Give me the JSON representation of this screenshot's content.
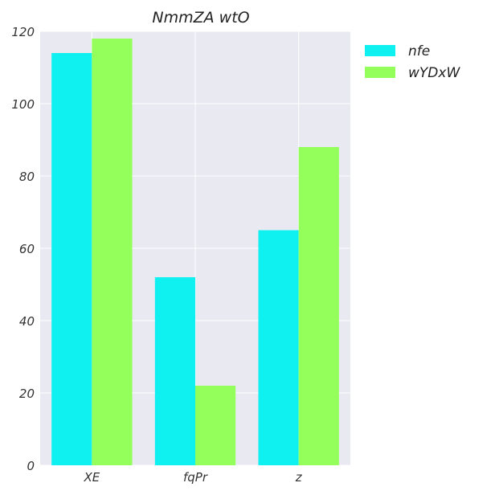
{
  "chart_data": {
    "type": "bar",
    "title": "NmmZA wtO",
    "xlabel": "",
    "ylabel": "",
    "categories": [
      "XE",
      "fqPr",
      "z"
    ],
    "series": [
      {
        "name": "nfe",
        "values": [
          114,
          52,
          65
        ],
        "color": "#0ff0f0"
      },
      {
        "name": "wYDxW",
        "values": [
          118,
          22,
          88
        ],
        "color": "#94ff5a"
      }
    ],
    "ylim": [
      0,
      120
    ],
    "yticks": [
      0,
      20,
      40,
      60,
      80,
      100,
      120
    ],
    "grid": true,
    "legend_position": "outside-top-right",
    "plot_background": "#e9e9f2",
    "grid_color": "#ffffff"
  }
}
